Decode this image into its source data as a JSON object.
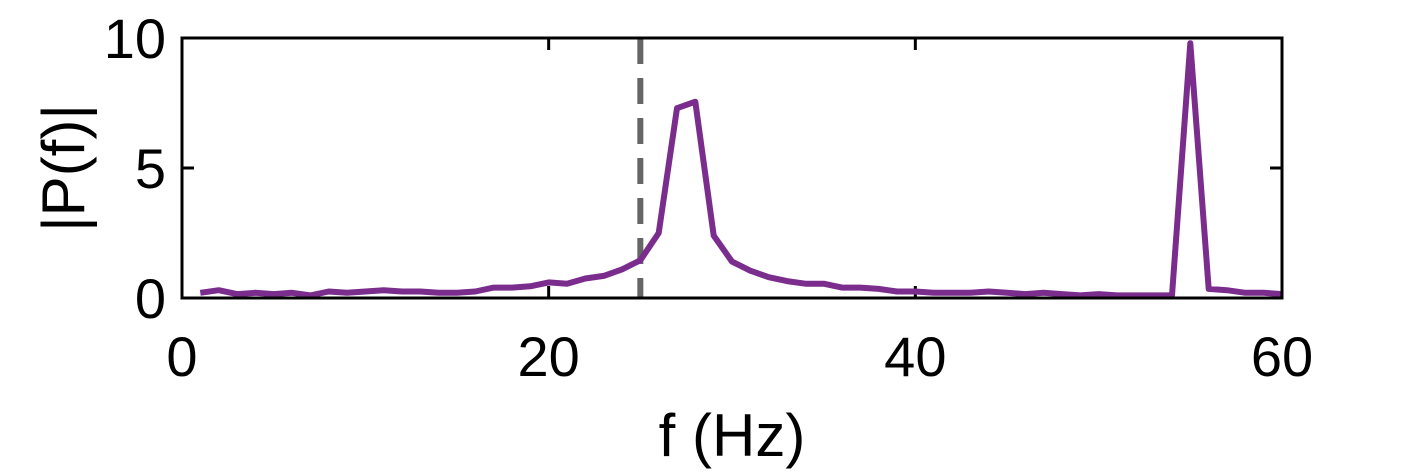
{
  "chart_data": {
    "type": "line",
    "title": "",
    "xlabel": "f (Hz)",
    "ylabel": "|P(f)|",
    "xlim": [
      0,
      60
    ],
    "ylim": [
      0,
      10
    ],
    "xticks": [
      0,
      20,
      40,
      60
    ],
    "yticks": [
      0,
      5,
      10
    ],
    "xtick_labels": [
      "0",
      "20",
      "40",
      "60"
    ],
    "ytick_labels": [
      "0",
      "5",
      "10"
    ],
    "grid": false,
    "legend": "none",
    "series": [
      {
        "color": "#7b2d8e",
        "x": [
          1,
          2,
          3,
          4,
          5,
          6,
          7,
          8,
          9,
          10,
          11,
          12,
          13,
          14,
          15,
          16,
          17,
          18,
          19,
          20,
          21,
          22,
          23,
          24,
          25,
          26,
          27,
          28,
          29,
          30,
          31,
          32,
          33,
          34,
          35,
          36,
          37,
          38,
          39,
          40,
          41,
          42,
          43,
          44,
          45,
          46,
          47,
          48,
          49,
          50,
          51,
          52,
          53,
          54,
          55,
          56,
          57,
          58,
          59,
          60
        ],
        "y": [
          0.2,
          0.3,
          0.15,
          0.2,
          0.15,
          0.2,
          0.1,
          0.25,
          0.2,
          0.25,
          0.3,
          0.25,
          0.25,
          0.2,
          0.2,
          0.25,
          0.4,
          0.4,
          0.45,
          0.6,
          0.55,
          0.75,
          0.85,
          1.1,
          1.45,
          2.5,
          7.3,
          7.55,
          2.4,
          1.4,
          1.05,
          0.8,
          0.65,
          0.55,
          0.55,
          0.4,
          0.4,
          0.35,
          0.25,
          0.25,
          0.2,
          0.2,
          0.2,
          0.25,
          0.2,
          0.15,
          0.2,
          0.15,
          0.1,
          0.15,
          0.1,
          0.1,
          0.1,
          0.1,
          9.8,
          0.35,
          0.3,
          0.2,
          0.2,
          0.15
        ]
      }
    ],
    "reference_lines": [
      {
        "orientation": "vertical",
        "x": 25,
        "style": "dashed",
        "color": "#666666"
      }
    ]
  }
}
